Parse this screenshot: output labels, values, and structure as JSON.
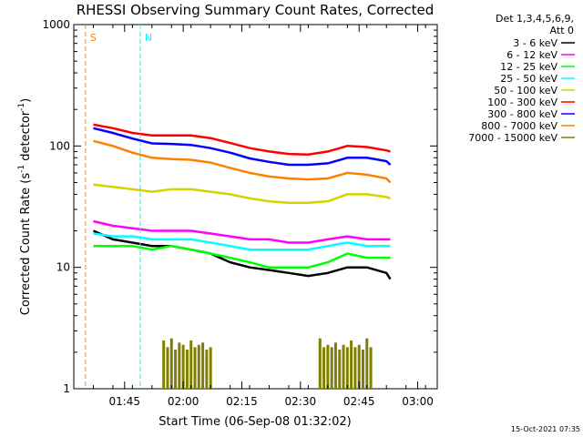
{
  "chart_data": {
    "type": "line",
    "title": "RHESSI Observing Summary Count Rates, Corrected",
    "xlabel": "Start Time (06-Sep-08 01:32:02)",
    "ylabel_main": "Corrected Count Rate (s",
    "ylabel_sup1": "-1",
    "ylabel_mid": " detector",
    "ylabel_sup2": "-1",
    "ylabel_end": ")",
    "y_scale": "log",
    "ylim": [
      1,
      1000
    ],
    "xlim_minutes": [
      0,
      93
    ],
    "x_tick_labels": [
      "01:45",
      "02:00",
      "02:15",
      "02:30",
      "02:45",
      "03:00"
    ],
    "x_tick_minutes": [
      13,
      28,
      43,
      58,
      73,
      88
    ],
    "y_tick_labels": [
      "1",
      "10",
      "100",
      "1000"
    ],
    "y_tick_values": [
      1,
      10,
      100,
      1000
    ],
    "footer_date": "15-Oct-2021 07:35",
    "legend_header": [
      "Det 1,3,4,5,6,9,",
      "Att 0"
    ],
    "series": [
      {
        "name": "3 - 6 keV",
        "color": "#000000",
        "x": [
          5,
          10,
          15,
          20,
          25,
          30,
          35,
          40,
          45,
          50,
          55,
          60,
          65,
          70,
          75,
          80,
          81
        ],
        "values": [
          20,
          17,
          16,
          15,
          15,
          14,
          13,
          11,
          10,
          9.5,
          9,
          8.5,
          9,
          10,
          10,
          9,
          8
        ]
      },
      {
        "name": "6 - 12 keV",
        "color": "#ff00ff",
        "x": [
          5,
          10,
          15,
          20,
          25,
          30,
          35,
          40,
          45,
          50,
          55,
          60,
          65,
          70,
          75,
          80,
          81
        ],
        "values": [
          24,
          22,
          21,
          20,
          20,
          20,
          19,
          18,
          17,
          17,
          16,
          16,
          17,
          18,
          17,
          17,
          17
        ]
      },
      {
        "name": "12 - 25 keV",
        "color": "#00ff00",
        "x": [
          5,
          10,
          15,
          20,
          25,
          30,
          35,
          40,
          45,
          50,
          55,
          60,
          65,
          70,
          75,
          80,
          81
        ],
        "values": [
          15,
          15,
          15,
          14,
          15,
          14,
          13,
          12,
          11,
          10,
          10,
          10,
          11,
          13,
          12,
          12,
          12
        ]
      },
      {
        "name": "25 - 50 keV",
        "color": "#00ffff",
        "x": [
          5,
          10,
          15,
          20,
          25,
          30,
          35,
          40,
          45,
          50,
          55,
          60,
          65,
          70,
          75,
          80,
          81
        ],
        "values": [
          19,
          18,
          18,
          17,
          17,
          17,
          16,
          15,
          14,
          14,
          14,
          14,
          15,
          16,
          15,
          15,
          15
        ]
      },
      {
        "name": "50 - 100 keV",
        "color": "#d4d400",
        "x": [
          5,
          10,
          15,
          20,
          25,
          30,
          35,
          40,
          45,
          50,
          55,
          60,
          65,
          70,
          75,
          80,
          81
        ],
        "values": [
          48,
          46,
          44,
          42,
          44,
          44,
          42,
          40,
          37,
          35,
          34,
          34,
          35,
          40,
          40,
          38,
          37
        ]
      },
      {
        "name": "100 - 300 keV",
        "color": "#ff0000",
        "x": [
          5,
          10,
          15,
          20,
          25,
          30,
          35,
          40,
          45,
          50,
          55,
          60,
          65,
          70,
          75,
          80,
          81
        ],
        "values": [
          150,
          140,
          128,
          122,
          122,
          122,
          116,
          106,
          96,
          90,
          86,
          85,
          90,
          100,
          98,
          92,
          90
        ]
      },
      {
        "name": "300 - 800 keV",
        "color": "#0000ff",
        "x": [
          5,
          10,
          15,
          20,
          25,
          30,
          35,
          40,
          45,
          50,
          55,
          60,
          65,
          70,
          75,
          80,
          81
        ],
        "values": [
          140,
          128,
          115,
          105,
          104,
          102,
          96,
          88,
          79,
          74,
          70,
          70,
          72,
          80,
          80,
          75,
          70
        ]
      },
      {
        "name": "800 - 7000 keV",
        "color": "#ff8000",
        "x": [
          5,
          10,
          15,
          20,
          25,
          30,
          35,
          40,
          45,
          50,
          55,
          60,
          65,
          70,
          75,
          80,
          81
        ],
        "values": [
          110,
          100,
          88,
          80,
          78,
          77,
          73,
          66,
          60,
          56,
          54,
          53,
          54,
          60,
          58,
          54,
          50
        ]
      },
      {
        "name": "7000 - 15000 keV",
        "color": "#808000",
        "x": [
          23,
          24,
          25,
          26,
          27,
          28,
          29,
          30,
          31,
          32,
          33,
          34,
          35,
          63,
          64,
          65,
          66,
          67,
          68,
          69,
          70,
          71,
          72,
          73,
          74,
          75,
          76
        ],
        "values": [
          2.5,
          2.2,
          2.6,
          2.1,
          2.4,
          2.3,
          2.1,
          2.5,
          2.2,
          2.3,
          2.4,
          2.1,
          2.2,
          2.6,
          2.2,
          2.3,
          2.2,
          2.4,
          2.1,
          2.3,
          2.2,
          2.5,
          2.2,
          2.3,
          2.1,
          2.6,
          2.2
        ]
      }
    ],
    "annotations": [
      {
        "label": "S",
        "color": "#ff8000",
        "x_minutes": 3
      },
      {
        "label": "N",
        "color": "#00ffff",
        "x_minutes": 17
      }
    ]
  }
}
